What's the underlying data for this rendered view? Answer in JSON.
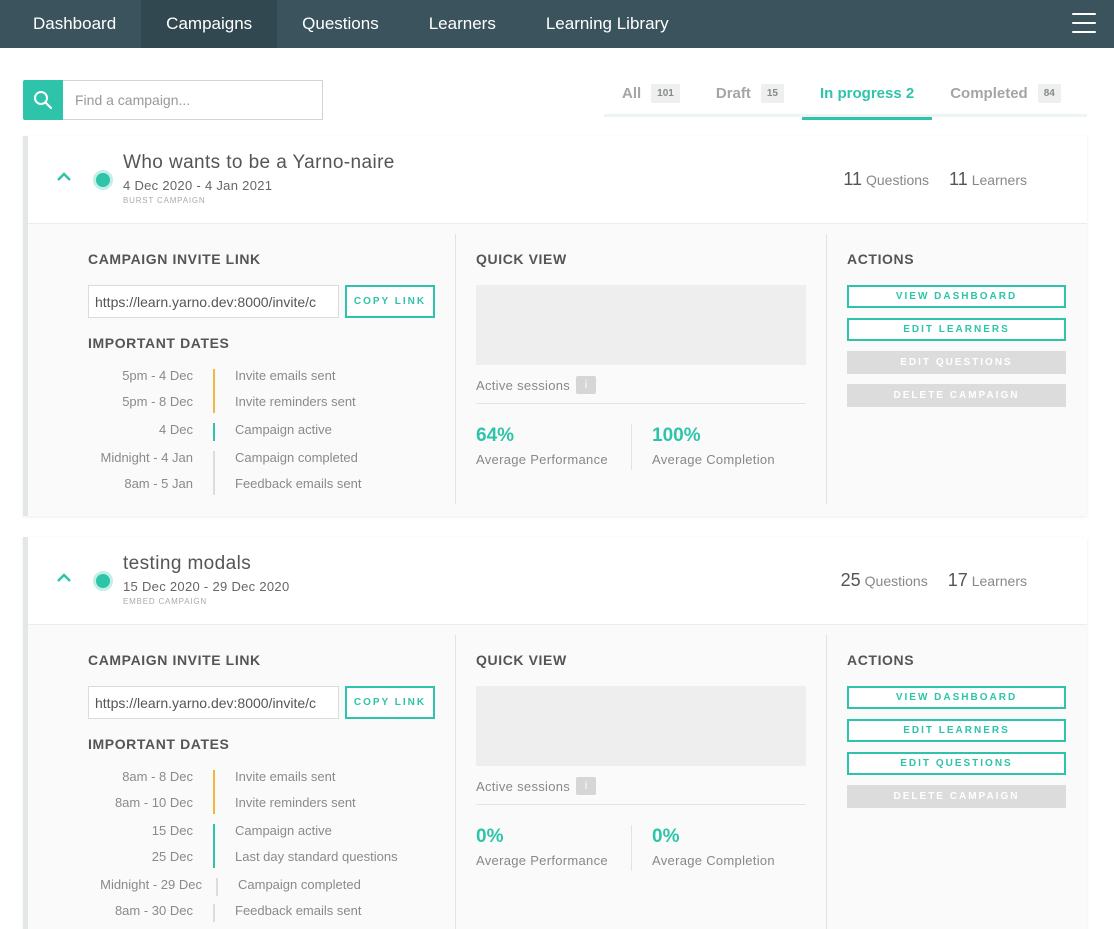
{
  "nav": {
    "items": [
      {
        "label": "Dashboard"
      },
      {
        "label": "Campaigns"
      },
      {
        "label": "Questions"
      },
      {
        "label": "Learners"
      },
      {
        "label": "Learning Library"
      }
    ]
  },
  "search": {
    "placeholder": "Find a campaign..."
  },
  "tabs": [
    {
      "label": "All",
      "count": "101"
    },
    {
      "label": "Draft",
      "count": "15"
    },
    {
      "label": "In progress 2",
      "count": ""
    },
    {
      "label": "Completed",
      "count": "84"
    }
  ],
  "labels": {
    "invite": "CAMPAIGN INVITE LINK",
    "copy": "COPY LINK",
    "dates": "IMPORTANT DATES",
    "quick": "QUICK VIEW",
    "sessions": "Active sessions",
    "info": "i",
    "perf": "Average Performance",
    "comp": "Average Completion",
    "actions": "ACTIONS",
    "questions": "Questions",
    "learners": "Learners"
  },
  "campaigns": [
    {
      "title": "Who wants to be a Yarno-naire",
      "dates": "4 Dec 2020 - 4 Jan 2021",
      "type": "BURST CAMPAIGN",
      "questions": "11",
      "learners": "11",
      "invite_link": "https://learn.yarno.dev:8000/invite/c",
      "performance": "64%",
      "completion": "100%",
      "timeline": [
        {
          "when": "5pm - 4 Dec",
          "what": "Invite emails sent"
        },
        {
          "when": "5pm - 8 Dec",
          "what": "Invite reminders sent"
        },
        {
          "when": "4 Dec",
          "what": "Campaign active"
        },
        {
          "when": "Midnight - 4 Jan",
          "what": "Campaign completed"
        },
        {
          "when": "8am - 5 Jan",
          "what": "Feedback emails sent"
        }
      ],
      "actions": [
        "VIEW DASHBOARD",
        "EDIT LEARNERS",
        "EDIT QUESTIONS",
        "DELETE CAMPAIGN"
      ]
    },
    {
      "title": "testing modals",
      "dates": "15 Dec 2020 - 29 Dec 2020",
      "type": "EMBED CAMPAIGN",
      "questions": "25",
      "learners": "17",
      "invite_link": "https://learn.yarno.dev:8000/invite/c",
      "performance": "0%",
      "completion": "0%",
      "timeline": [
        {
          "when": "8am - 8 Dec",
          "what": "Invite emails sent"
        },
        {
          "when": "8am - 10 Dec",
          "what": "Invite reminders sent"
        },
        {
          "when": "15 Dec",
          "what": "Campaign active"
        },
        {
          "when": "25 Dec",
          "what": "Last day standard questions"
        },
        {
          "when": "Midnight - 29 Dec",
          "what": "Campaign completed"
        },
        {
          "when": "8am - 30 Dec",
          "what": "Feedback emails sent"
        }
      ],
      "actions": [
        "VIEW DASHBOARD",
        "EDIT LEARNERS",
        "EDIT QUESTIONS",
        "DELETE CAMPAIGN"
      ]
    }
  ],
  "colors": {
    "accent": "#2ec4a9",
    "nav": "#3b535c",
    "timeline_invite": "#f0b840",
    "timeline_active": "#2ec4a9",
    "timeline_done": "#dcdcdc"
  }
}
